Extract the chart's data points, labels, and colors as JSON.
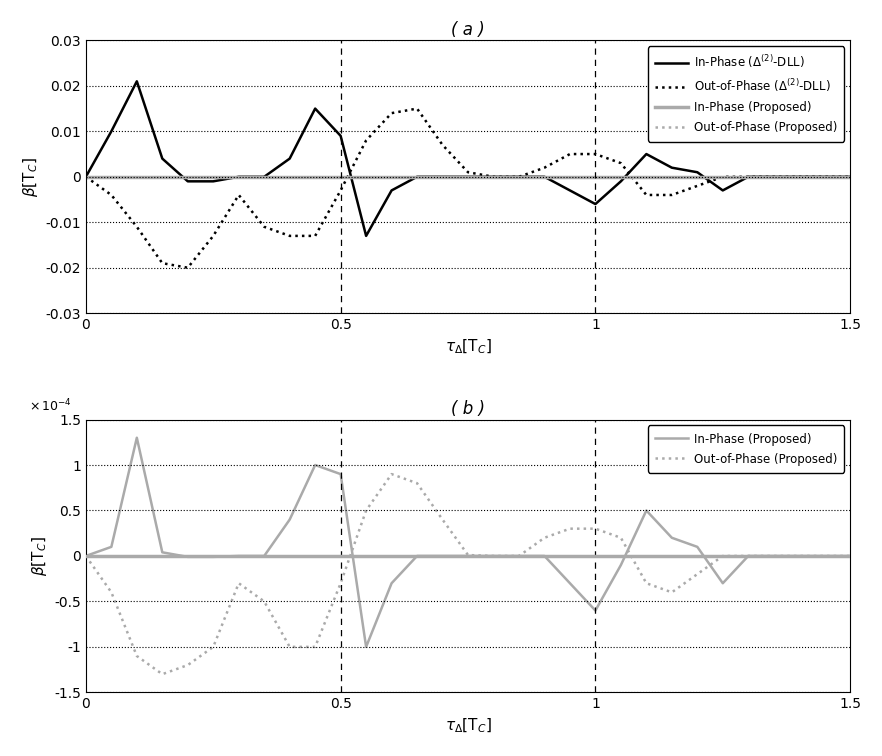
{
  "title_a": "( a )",
  "title_b": "( b )",
  "xlim": [
    0,
    1.5
  ],
  "ylim_a": [
    -0.03,
    0.03
  ],
  "ylim_b": [
    -0.00015,
    0.00015
  ],
  "yticks_a": [
    -0.03,
    -0.02,
    -0.01,
    0.0,
    0.01,
    0.02,
    0.03
  ],
  "yticks_b_scaled": [
    -1.5,
    -1.0,
    -0.5,
    0.0,
    0.5,
    1.0,
    1.5
  ],
  "xticks": [
    0,
    0.5,
    1.0,
    1.5
  ],
  "vlines": [
    0.5,
    1.0
  ],
  "color_black": "#000000",
  "color_gray": "#aaaaaa",
  "inphase_dll_x": [
    0.0,
    0.05,
    0.1,
    0.15,
    0.2,
    0.25,
    0.3,
    0.35,
    0.4,
    0.45,
    0.5,
    0.55,
    0.6,
    0.65,
    0.7,
    0.75,
    0.8,
    0.85,
    0.9,
    0.95,
    1.0,
    1.05,
    1.1,
    1.15,
    1.2,
    1.25,
    1.3,
    1.4,
    1.5
  ],
  "inphase_dll_y": [
    0.0,
    0.01,
    0.021,
    0.004,
    -0.001,
    -0.001,
    0.0,
    0.0,
    0.004,
    0.015,
    0.009,
    -0.013,
    -0.003,
    0.0,
    0.0,
    0.0,
    0.0,
    0.0,
    0.0,
    -0.003,
    -0.006,
    -0.001,
    0.005,
    0.002,
    0.001,
    -0.003,
    0.0,
    0.0,
    0.0
  ],
  "outofphase_dll_x": [
    0.0,
    0.05,
    0.1,
    0.15,
    0.2,
    0.25,
    0.3,
    0.35,
    0.4,
    0.45,
    0.5,
    0.55,
    0.6,
    0.65,
    0.7,
    0.75,
    0.8,
    0.85,
    0.9,
    0.95,
    1.0,
    1.05,
    1.1,
    1.15,
    1.2,
    1.25,
    1.3,
    1.4,
    1.5
  ],
  "outofphase_dll_y": [
    0.0,
    -0.004,
    -0.011,
    -0.019,
    -0.02,
    -0.013,
    -0.004,
    -0.011,
    -0.013,
    -0.013,
    -0.003,
    0.008,
    0.014,
    0.015,
    0.007,
    0.001,
    0.0,
    0.0,
    0.002,
    0.005,
    0.005,
    0.003,
    -0.004,
    -0.004,
    -0.002,
    0.0,
    0.0,
    0.0,
    0.0
  ],
  "inphase_prop_b_x": [
    0.0,
    0.05,
    0.1,
    0.15,
    0.2,
    0.25,
    0.3,
    0.35,
    0.4,
    0.45,
    0.5,
    0.55,
    0.6,
    0.65,
    0.7,
    0.75,
    0.8,
    0.85,
    0.9,
    0.95,
    1.0,
    1.05,
    1.1,
    1.15,
    1.2,
    1.25,
    1.3,
    1.4,
    1.5
  ],
  "inphase_prop_b_y": [
    0.0,
    1e-05,
    0.00013,
    4e-06,
    -1e-06,
    -1e-06,
    0.0,
    0.0,
    4e-05,
    0.0001,
    9e-05,
    -0.0001,
    -3e-05,
    0.0,
    0.0,
    0.0,
    0.0,
    0.0,
    0.0,
    -3e-05,
    -6e-05,
    -1e-05,
    5e-05,
    2e-05,
    1e-05,
    -3e-05,
    0.0,
    0.0,
    0.0
  ],
  "outofphase_prop_b_x": [
    0.0,
    0.05,
    0.1,
    0.15,
    0.2,
    0.25,
    0.3,
    0.35,
    0.4,
    0.45,
    0.5,
    0.55,
    0.6,
    0.65,
    0.7,
    0.75,
    0.8,
    0.85,
    0.9,
    0.95,
    1.0,
    1.05,
    1.1,
    1.15,
    1.2,
    1.25,
    1.3,
    1.4,
    1.5
  ],
  "outofphase_prop_b_y": [
    0.0,
    -4e-05,
    -0.00011,
    -0.00013,
    -0.00012,
    -0.0001,
    -3e-05,
    -5e-05,
    -0.0001,
    -0.0001,
    -3e-05,
    5e-05,
    9e-05,
    8e-05,
    4e-05,
    1e-06,
    0.0,
    0.0,
    2e-05,
    3e-05,
    3e-05,
    2e-05,
    -3e-05,
    -4e-05,
    -2e-05,
    0.0,
    0.0,
    0.0,
    0.0
  ]
}
